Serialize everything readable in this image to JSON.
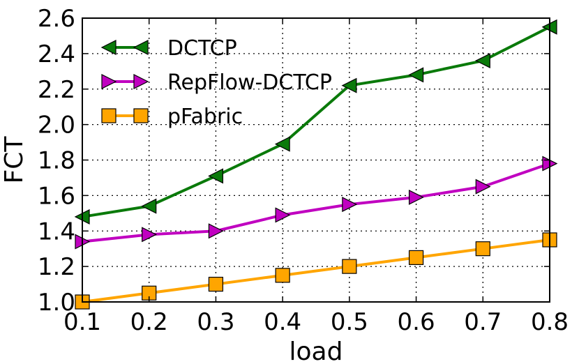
{
  "chart_data": {
    "type": "line",
    "title": "",
    "xlabel": "load",
    "ylabel": "FCT",
    "xlim": [
      0.1,
      0.8
    ],
    "ylim": [
      1.0,
      2.6
    ],
    "xticks": [
      "0.1",
      "0.2",
      "0.3",
      "0.4",
      "0.5",
      "0.6",
      "0.7",
      "0.8"
    ],
    "yticks": [
      "1.0",
      "1.2",
      "1.4",
      "1.6",
      "1.8",
      "2.0",
      "2.2",
      "2.4",
      "2.6"
    ],
    "grid": true,
    "legend_position": "top-left",
    "x": [
      0.1,
      0.2,
      0.3,
      0.4,
      0.5,
      0.6,
      0.7,
      0.8
    ],
    "series": [
      {
        "name": "DCTCP",
        "color": "#0a7a0a",
        "marker": "triangle-left",
        "values": [
          1.48,
          1.54,
          1.71,
          1.89,
          2.22,
          2.28,
          2.36,
          2.55
        ]
      },
      {
        "name": "RepFlow-DCTCP",
        "color": "#c000c0",
        "marker": "triangle-right",
        "values": [
          1.34,
          1.38,
          1.4,
          1.49,
          1.55,
          1.59,
          1.65,
          1.78
        ]
      },
      {
        "name": "pFabric",
        "color": "#ffa500",
        "marker": "square",
        "values": [
          1.0,
          1.05,
          1.1,
          1.15,
          1.2,
          1.25,
          1.3,
          1.35
        ]
      }
    ]
  }
}
